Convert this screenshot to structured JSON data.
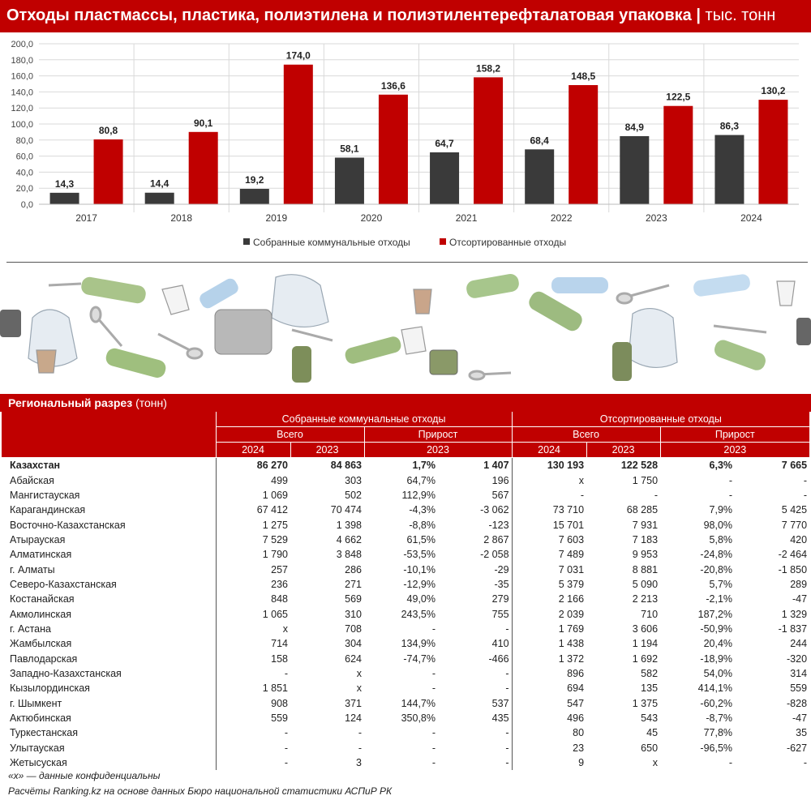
{
  "header": {
    "title": "Отходы пластмассы, пластика, полиэтилена и полиэтилентерефталатовая упаковка",
    "separator": "|",
    "unit": "тыс. тонн"
  },
  "colors": {
    "accent": "#c00000",
    "dark": "#3a3a3a"
  },
  "chart_data": {
    "type": "bar",
    "categories": [
      "2017",
      "2018",
      "2019",
      "2020",
      "2021",
      "2022",
      "2023",
      "2024"
    ],
    "series": [
      {
        "name": "Собранные коммунальные отходы",
        "color": "#3a3a3a",
        "values": [
          14.3,
          14.4,
          19.2,
          58.1,
          64.7,
          68.4,
          84.9,
          86.3
        ],
        "labels": [
          "14,3",
          "14,4",
          "19,2",
          "58,1",
          "64,7",
          "68,4",
          "84,9",
          "86,3"
        ]
      },
      {
        "name": "Отсортированные отходы",
        "color": "#c00000",
        "values": [
          80.8,
          90.1,
          174.0,
          136.6,
          158.2,
          148.5,
          122.5,
          130.2
        ],
        "labels": [
          "80,8",
          "90,1",
          "174,0",
          "136,6",
          "158,2",
          "148,5",
          "122,5",
          "130,2"
        ]
      }
    ],
    "ylim": [
      0,
      200
    ],
    "yticks": [
      "0,0",
      "20,0",
      "40,0",
      "60,0",
      "80,0",
      "100,0",
      "120,0",
      "140,0",
      "160,0",
      "180,0",
      "200,0"
    ],
    "grid": true,
    "legend": "bottom-center"
  },
  "illustration": {
    "icons": [
      "plastic-bag-icon",
      "plastic-bottle-icon",
      "disposable-cup-icon",
      "plastic-spoon-icon",
      "plastic-fork-icon",
      "canister-icon",
      "plastic-container-icon"
    ]
  },
  "regional": {
    "title": "Региональный разрез",
    "unit": "(тонн)",
    "group1": "Собранные коммунальные отходы",
    "group2": "Отсортированные отходы",
    "total_label": "Всего",
    "growth_label": "Прирост",
    "year_2024": "2024",
    "year_2023": "2023",
    "rows": [
      [
        "Казахстан",
        "86 270",
        "84 863",
        "1,7%",
        "1 407",
        "130 193",
        "122 528",
        "6,3%",
        "7 665"
      ],
      [
        "Абайская",
        "499",
        "303",
        "64,7%",
        "196",
        "x",
        "1 750",
        "-",
        "-"
      ],
      [
        "Мангистауская",
        "1 069",
        "502",
        "112,9%",
        "567",
        "-",
        "-",
        "-",
        "-"
      ],
      [
        "Карагандинская",
        "67 412",
        "70 474",
        "-4,3%",
        "-3 062",
        "73 710",
        "68 285",
        "7,9%",
        "5 425"
      ],
      [
        "Восточно-Казахстанская",
        "1 275",
        "1 398",
        "-8,8%",
        "-123",
        "15 701",
        "7 931",
        "98,0%",
        "7 770"
      ],
      [
        "Атырауская",
        "7 529",
        "4 662",
        "61,5%",
        "2 867",
        "7 603",
        "7 183",
        "5,8%",
        "420"
      ],
      [
        "Алматинская",
        "1 790",
        "3 848",
        "-53,5%",
        "-2 058",
        "7 489",
        "9 953",
        "-24,8%",
        "-2 464"
      ],
      [
        "г. Алматы",
        "257",
        "286",
        "-10,1%",
        "-29",
        "7 031",
        "8 881",
        "-20,8%",
        "-1 850"
      ],
      [
        "Северо-Казахстанская",
        "236",
        "271",
        "-12,9%",
        "-35",
        "5 379",
        "5 090",
        "5,7%",
        "289"
      ],
      [
        "Костанайская",
        "848",
        "569",
        "49,0%",
        "279",
        "2 166",
        "2 213",
        "-2,1%",
        "-47"
      ],
      [
        "Акмолинская",
        "1 065",
        "310",
        "243,5%",
        "755",
        "2 039",
        "710",
        "187,2%",
        "1 329"
      ],
      [
        "г. Астана",
        "x",
        "708",
        "-",
        "-",
        "1 769",
        "3 606",
        "-50,9%",
        "-1 837"
      ],
      [
        "Жамбылская",
        "714",
        "304",
        "134,9%",
        "410",
        "1 438",
        "1 194",
        "20,4%",
        "244"
      ],
      [
        "Павлодарская",
        "158",
        "624",
        "-74,7%",
        "-466",
        "1 372",
        "1 692",
        "-18,9%",
        "-320"
      ],
      [
        "Западно-Казахстанская",
        "-",
        "x",
        "-",
        "-",
        "896",
        "582",
        "54,0%",
        "314"
      ],
      [
        "Кызылординская",
        "1 851",
        "x",
        "-",
        "-",
        "694",
        "135",
        "414,1%",
        "559"
      ],
      [
        "г. Шымкент",
        "908",
        "371",
        "144,7%",
        "537",
        "547",
        "1 375",
        "-60,2%",
        "-828"
      ],
      [
        "Актюбинская",
        "559",
        "124",
        "350,8%",
        "435",
        "496",
        "543",
        "-8,7%",
        "-47"
      ],
      [
        "Туркестанская",
        "-",
        "-",
        "-",
        "-",
        "80",
        "45",
        "77,8%",
        "35"
      ],
      [
        "Улытауская",
        "-",
        "-",
        "-",
        "-",
        "23",
        "650",
        "-96,5%",
        "-627"
      ],
      [
        "Жетысуская",
        "-",
        "3",
        "-",
        "-",
        "9",
        "x",
        "-",
        "-"
      ]
    ]
  },
  "footnotes": {
    "note": "«x» — данные конфиденциальны",
    "source": "Расчёты Ranking.kz на основе данных Бюро национальной статистики АСПиР РК"
  }
}
